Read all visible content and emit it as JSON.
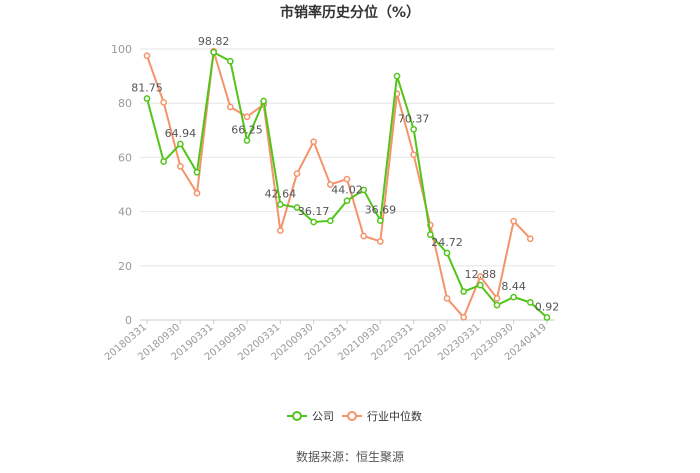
{
  "chart_data": {
    "type": "line",
    "title": "市销率历史分位（%）",
    "ylim": [
      0,
      100
    ],
    "y_ticks": [
      "0",
      "20",
      "40",
      "60",
      "80",
      "100"
    ],
    "x_tick_labels": [
      "20180331",
      "20180930",
      "20190331",
      "20190930",
      "20200331",
      "20200930",
      "20210331",
      "20210930",
      "20220331",
      "20220930",
      "20230331",
      "20230930",
      "20240419"
    ],
    "grid": "horizontal",
    "legend_position": "bottom",
    "colors": {
      "公司": "#52c41a",
      "行业中位数": "#f5936a"
    },
    "series": [
      {
        "name": "公司",
        "values": [
          81.75,
          58.5,
          64.94,
          54.5,
          98.82,
          95.5,
          66.25,
          80.8,
          42.64,
          41.5,
          36.17,
          36.6,
          44.02,
          48.0,
          36.69,
          90.0,
          70.37,
          31.5,
          24.72,
          10.5,
          12.88,
          5.5,
          8.44,
          6.5,
          0.92
        ]
      },
      {
        "name": "行业中位数",
        "values": [
          97.5,
          80.3,
          56.7,
          46.8,
          99.2,
          78.6,
          75.0,
          79.5,
          33.0,
          54.0,
          65.8,
          50.0,
          52.0,
          31.0,
          29.0,
          83.5,
          61.0,
          35.0,
          8.0,
          1.0,
          16.0,
          8.0,
          36.5,
          30.0,
          null
        ]
      }
    ],
    "data_labels": [
      {
        "series": 0,
        "index": 0,
        "text": "81.75"
      },
      {
        "series": 0,
        "index": 2,
        "text": "64.94"
      },
      {
        "series": 0,
        "index": 4,
        "text": "98.82"
      },
      {
        "series": 0,
        "index": 6,
        "text": "66.25"
      },
      {
        "series": 0,
        "index": 8,
        "text": "42.64"
      },
      {
        "series": 0,
        "index": 10,
        "text": "36.17"
      },
      {
        "series": 0,
        "index": 12,
        "text": "44.02"
      },
      {
        "series": 0,
        "index": 14,
        "text": "36.69"
      },
      {
        "series": 0,
        "index": 16,
        "text": "70.37"
      },
      {
        "series": 0,
        "index": 18,
        "text": "24.72"
      },
      {
        "series": 0,
        "index": 20,
        "text": "12.88"
      },
      {
        "series": 0,
        "index": 22,
        "text": "8.44"
      },
      {
        "series": 0,
        "index": 24,
        "text": "0.92"
      }
    ]
  },
  "legend": {
    "items": [
      "公司",
      "行业中位数"
    ]
  },
  "source": "数据来源：恒生聚源"
}
